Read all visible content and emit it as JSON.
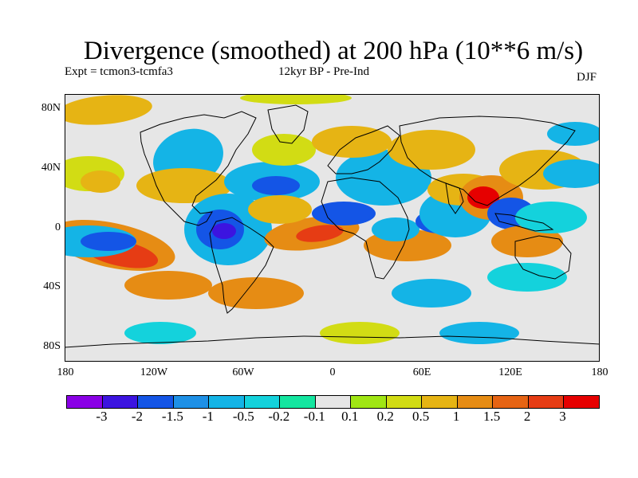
{
  "title": "Divergence (smoothed) at 200 hPa (10**6 m/s)",
  "expt": "Expt = tcmon3-tcmfa3",
  "period": "12kyr BP - Pre-Ind",
  "season": "DJF",
  "axes": {
    "y_ticks": [
      "80N",
      "40N",
      "0",
      "40S",
      "80S"
    ],
    "x_ticks": [
      "180",
      "120W",
      "60W",
      "0",
      "60E",
      "120E",
      "180"
    ]
  },
  "colorbar": {
    "colors": [
      "#8a00e6",
      "#3c14e0",
      "#1455e6",
      "#1e90e6",
      "#14b4e6",
      "#14d2dc",
      "#14e6a0",
      "#e6e6e6",
      "#a0e614",
      "#d2dc14",
      "#e6b414",
      "#e68c14",
      "#e66414",
      "#e63c14",
      "#e60000"
    ],
    "labels": [
      "-3",
      "-2",
      "-1.5",
      "-1",
      "-0.5",
      "-0.2",
      "-0.1",
      "0.1",
      "0.2",
      "0.5",
      "1",
      "1.5",
      "2",
      "3"
    ]
  },
  "map": {
    "background": "#e6e6e6",
    "field_colors": {
      "strong_neg": "#3c14e0",
      "neg": "#1455e6",
      "mid_neg": "#14b4e6",
      "weak_neg": "#14d2dc",
      "faint_neg": "#14e6a0",
      "faint_pos": "#a0e614",
      "weak_pos": "#d2dc14",
      "pos": "#e6b414",
      "mid_pos": "#e68c14",
      "strong_pos": "#e63c14",
      "max_pos": "#e60000"
    }
  }
}
